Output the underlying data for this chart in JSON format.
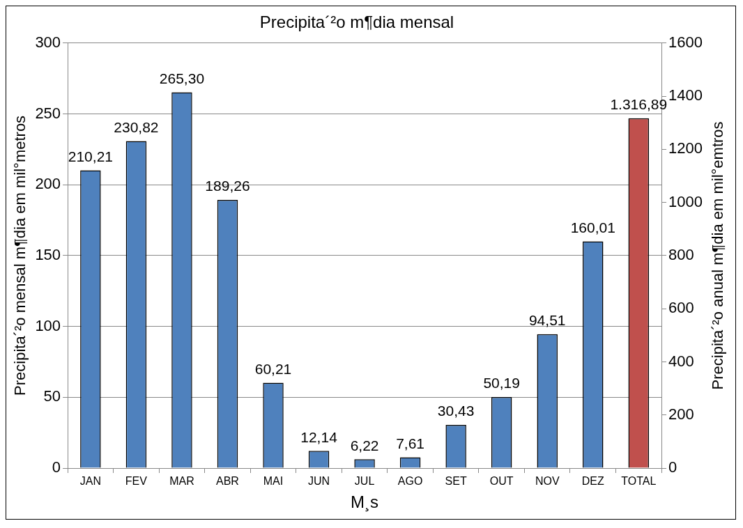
{
  "chart_data": {
    "type": "bar",
    "title": "Precipita´²o m¶dia mensal",
    "xlabel": "M¸s",
    "ylabel": "Precipita´²o mensal m¶dia em mil°metros",
    "y2label": "Precipita´²o anual m¶dia em mil°emtros",
    "categories": [
      "JAN",
      "FEV",
      "MAR",
      "ABR",
      "MAI",
      "JUN",
      "JUL",
      "AGO",
      "SET",
      "OUT",
      "NOV",
      "DEZ",
      "TOTAL"
    ],
    "series": [
      {
        "color": "#4f81bd",
        "values": [
          210.21,
          230.82,
          265.3,
          189.26,
          60.21,
          12.14,
          6.22,
          7.61,
          30.43,
          50.19,
          94.51,
          160.01,
          null
        ],
        "value_labels": [
          "210,21",
          "230,82",
          "265,30",
          "189,26",
          "60,21",
          "12,14",
          "6,22",
          "7,61",
          "30,43",
          "50,19",
          "94,51",
          "160,01",
          null
        ]
      },
      {
        "color": "#c0504d",
        "axis": "y2",
        "values": [
          null,
          null,
          null,
          null,
          null,
          null,
          null,
          null,
          null,
          null,
          null,
          null,
          1316.89
        ],
        "value_labels": [
          null,
          null,
          null,
          null,
          null,
          null,
          null,
          null,
          null,
          null,
          null,
          null,
          "1.316,89"
        ]
      }
    ],
    "ylim": [
      0,
      300
    ],
    "yticks": [
      0,
      50,
      100,
      150,
      200,
      250,
      300
    ],
    "y2lim": [
      0,
      1600
    ],
    "y2ticks": [
      0,
      200,
      400,
      600,
      800,
      1000,
      1200,
      1400,
      1600
    ],
    "grid": "y",
    "legend": false
  }
}
